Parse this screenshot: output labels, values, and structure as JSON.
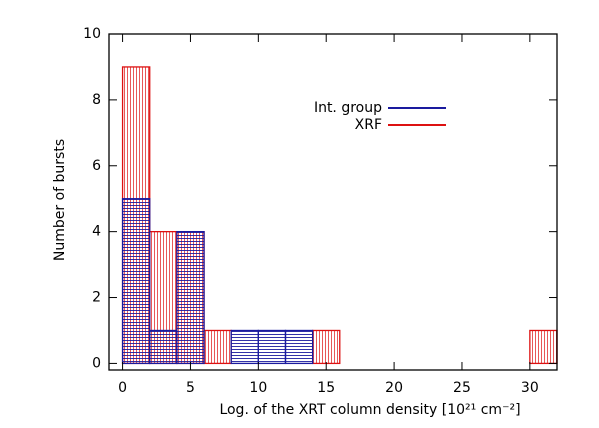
{
  "chart_data": {
    "type": "histogram",
    "xlabel": "Log. of the XRT column density [10²¹ cm⁻²]",
    "ylabel": "Number of bursts",
    "bins": [
      0,
      2,
      4,
      6,
      8,
      10,
      12,
      14,
      16,
      18,
      20,
      22,
      24,
      26,
      28,
      30,
      32
    ],
    "series": [
      {
        "name": "XRF",
        "color": "#dd1111",
        "hatch": "vertical",
        "values": [
          9,
          4,
          4,
          1,
          0,
          0,
          0,
          1,
          0,
          0,
          0,
          0,
          0,
          0,
          0,
          1
        ]
      },
      {
        "name": "Int. group",
        "color": "#1a1a9e",
        "hatch": "horizontal",
        "values": [
          5,
          1,
          4,
          0,
          1,
          1,
          1,
          0,
          0,
          0,
          0,
          0,
          0,
          0,
          0,
          0
        ]
      }
    ],
    "legend_order": [
      1,
      0
    ],
    "xlim": [
      -1,
      32
    ],
    "ylim": [
      -0.2,
      10
    ],
    "xticks": [
      0,
      5,
      10,
      15,
      20,
      25,
      30
    ],
    "yticks": [
      0,
      2,
      4,
      6,
      8,
      10
    ]
  }
}
